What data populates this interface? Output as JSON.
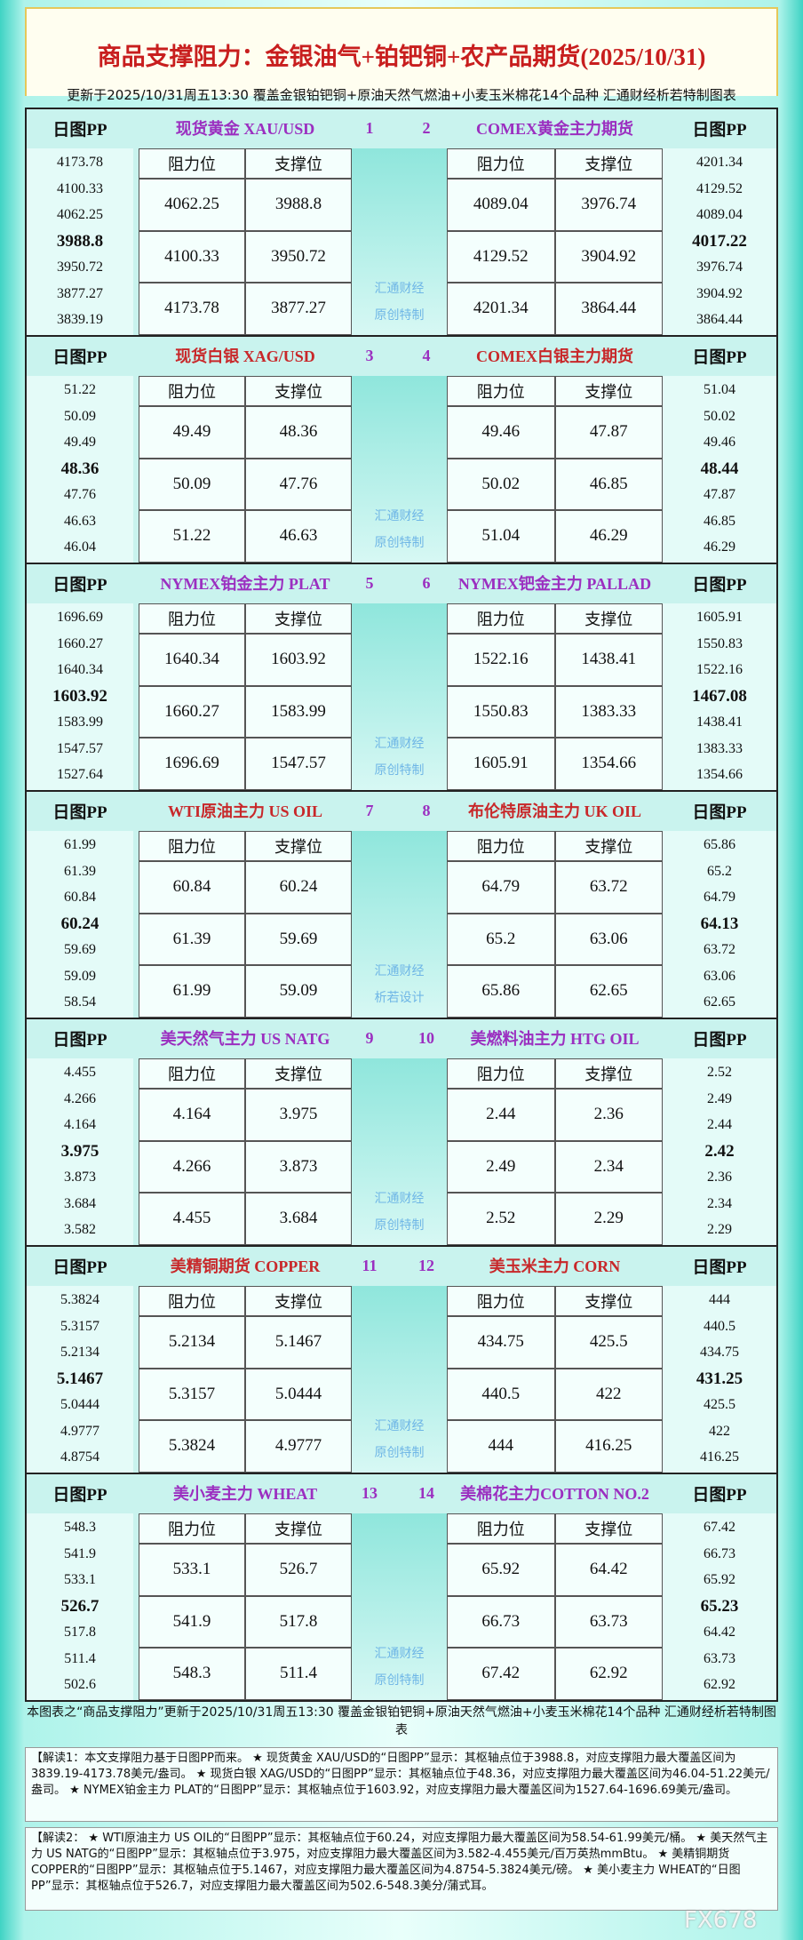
{
  "header": {
    "title": "商品支撑阻力：金银油气+铂钯铜+农产品期货(2025/10/31)",
    "subtitle": "更新于2025/10/31周五13:30 覆盖金银铂钯铜+原油天然气燃油+小麦玉米棉花14个品种 汇通财经析若特制图表"
  },
  "blocks": [
    {
      "numbers": [
        "1",
        "2"
      ],
      "watermark": [
        "汇通财经",
        "原创特制"
      ],
      "left": {
        "pp_label": "日图PP",
        "name": "现货黄金 XAU/USD",
        "pp": [
          "4173.78",
          "4100.33",
          "4062.25",
          "3988.8",
          "3950.72",
          "3877.27",
          "3839.19"
        ],
        "headers": [
          "阻力位",
          "支撑位"
        ],
        "rows": [
          [
            "4062.25",
            "3988.8"
          ],
          [
            "4100.33",
            "3950.72"
          ],
          [
            "4173.78",
            "3877.27"
          ]
        ]
      },
      "right": {
        "pp_label": "日图PP",
        "name": "COMEX黄金主力期货",
        "pp": [
          "4201.34",
          "4129.52",
          "4089.04",
          "4017.22",
          "3976.74",
          "3904.92",
          "3864.44"
        ],
        "headers": [
          "阻力位",
          "支撑位"
        ],
        "rows": [
          [
            "4089.04",
            "3976.74"
          ],
          [
            "4129.52",
            "3904.92"
          ],
          [
            "4201.34",
            "3864.44"
          ]
        ]
      }
    },
    {
      "numbers": [
        "3",
        "4"
      ],
      "watermark": [
        "汇通财经",
        "原创特制"
      ],
      "left": {
        "pp_label": "日图PP",
        "name": "现货白银 XAG/USD",
        "pp": [
          "51.22",
          "50.09",
          "49.49",
          "48.36",
          "47.76",
          "46.63",
          "46.04"
        ],
        "headers": [
          "阻力位",
          "支撑位"
        ],
        "rows": [
          [
            "49.49",
            "48.36"
          ],
          [
            "50.09",
            "47.76"
          ],
          [
            "51.22",
            "46.63"
          ]
        ]
      },
      "right": {
        "pp_label": "日图PP",
        "name": "COMEX白银主力期货",
        "pp": [
          "51.04",
          "50.02",
          "49.46",
          "48.44",
          "47.87",
          "46.85",
          "46.29"
        ],
        "headers": [
          "阻力位",
          "支撑位"
        ],
        "rows": [
          [
            "49.46",
            "47.87"
          ],
          [
            "50.02",
            "46.85"
          ],
          [
            "51.04",
            "46.29"
          ]
        ]
      }
    },
    {
      "numbers": [
        "5",
        "6"
      ],
      "watermark": [
        "汇通财经",
        "原创特制"
      ],
      "left": {
        "pp_label": "日图PP",
        "name": "NYMEX铂金主力 PLAT",
        "pp": [
          "1696.69",
          "1660.27",
          "1640.34",
          "1603.92",
          "1583.99",
          "1547.57",
          "1527.64"
        ],
        "headers": [
          "阻力位",
          "支撑位"
        ],
        "rows": [
          [
            "1640.34",
            "1603.92"
          ],
          [
            "1660.27",
            "1583.99"
          ],
          [
            "1696.69",
            "1547.57"
          ]
        ]
      },
      "right": {
        "pp_label": "日图PP",
        "name": "NYMEX钯金主力 PALLAD",
        "pp": [
          "1605.91",
          "1550.83",
          "1522.16",
          "1467.08",
          "1438.41",
          "1383.33",
          "1354.66"
        ],
        "headers": [
          "阻力位",
          "支撑位"
        ],
        "rows": [
          [
            "1522.16",
            "1438.41"
          ],
          [
            "1550.83",
            "1383.33"
          ],
          [
            "1605.91",
            "1354.66"
          ]
        ]
      }
    },
    {
      "numbers": [
        "7",
        "8"
      ],
      "watermark": [
        "汇通财经",
        "析若设计"
      ],
      "left": {
        "pp_label": "日图PP",
        "name": "WTI原油主力 US OIL",
        "pp": [
          "61.99",
          "61.39",
          "60.84",
          "60.24",
          "59.69",
          "59.09",
          "58.54"
        ],
        "headers": [
          "阻力位",
          "支撑位"
        ],
        "rows": [
          [
            "60.84",
            "60.24"
          ],
          [
            "61.39",
            "59.69"
          ],
          [
            "61.99",
            "59.09"
          ]
        ]
      },
      "right": {
        "pp_label": "日图PP",
        "name": "布伦特原油主力 UK OIL",
        "pp": [
          "65.86",
          "65.2",
          "64.79",
          "64.13",
          "63.72",
          "63.06",
          "62.65"
        ],
        "headers": [
          "阻力位",
          "支撑位"
        ],
        "rows": [
          [
            "64.79",
            "63.72"
          ],
          [
            "65.2",
            "63.06"
          ],
          [
            "65.86",
            "62.65"
          ]
        ]
      }
    },
    {
      "numbers": [
        "9",
        "10"
      ],
      "watermark": [
        "汇通财经",
        "原创特制"
      ],
      "left": {
        "pp_label": "日图PP",
        "name": "美天然气主力 US NATG",
        "pp": [
          "4.455",
          "4.266",
          "4.164",
          "3.975",
          "3.873",
          "3.684",
          "3.582"
        ],
        "headers": [
          "阻力位",
          "支撑位"
        ],
        "rows": [
          [
            "4.164",
            "3.975"
          ],
          [
            "4.266",
            "3.873"
          ],
          [
            "4.455",
            "3.684"
          ]
        ]
      },
      "right": {
        "pp_label": "日图PP",
        "name": "美燃料油主力 HTG OIL",
        "pp": [
          "2.52",
          "2.49",
          "2.44",
          "2.42",
          "2.36",
          "2.34",
          "2.29"
        ],
        "headers": [
          "阻力位",
          "支撑位"
        ],
        "rows": [
          [
            "2.44",
            "2.36"
          ],
          [
            "2.49",
            "2.34"
          ],
          [
            "2.52",
            "2.29"
          ]
        ]
      }
    },
    {
      "numbers": [
        "11",
        "12"
      ],
      "watermark": [
        "汇通财经",
        "原创特制"
      ],
      "left": {
        "pp_label": "日图PP",
        "name": "美精铜期货 COPPER",
        "pp": [
          "5.3824",
          "5.3157",
          "5.2134",
          "5.1467",
          "5.0444",
          "4.9777",
          "4.8754"
        ],
        "headers": [
          "阻力位",
          "支撑位"
        ],
        "rows": [
          [
            "5.2134",
            "5.1467"
          ],
          [
            "5.3157",
            "5.0444"
          ],
          [
            "5.3824",
            "4.9777"
          ]
        ]
      },
      "right": {
        "pp_label": "日图PP",
        "name": "美玉米主力 CORN",
        "pp": [
          "444",
          "440.5",
          "434.75",
          "431.25",
          "425.5",
          "422",
          "416.25"
        ],
        "headers": [
          "阻力位",
          "支撑位"
        ],
        "rows": [
          [
            "434.75",
            "425.5"
          ],
          [
            "440.5",
            "422"
          ],
          [
            "444",
            "416.25"
          ]
        ]
      }
    },
    {
      "numbers": [
        "13",
        "14"
      ],
      "watermark": [
        "汇通财经",
        "原创特制"
      ],
      "left": {
        "pp_label": "日图PP",
        "name": "美小麦主力 WHEAT",
        "pp": [
          "548.3",
          "541.9",
          "533.1",
          "526.7",
          "517.8",
          "511.4",
          "502.6"
        ],
        "headers": [
          "阻力位",
          "支撑位"
        ],
        "rows": [
          [
            "533.1",
            "526.7"
          ],
          [
            "541.9",
            "517.8"
          ],
          [
            "548.3",
            "511.4"
          ]
        ]
      },
      "right": {
        "pp_label": "日图PP",
        "name": "美棉花主力COTTON NO.2",
        "pp": [
          "67.42",
          "66.73",
          "65.92",
          "65.23",
          "64.42",
          "63.73",
          "62.92"
        ],
        "headers": [
          "阻力位",
          "支撑位"
        ],
        "rows": [
          [
            "65.92",
            "64.42"
          ],
          [
            "66.73",
            "63.73"
          ],
          [
            "67.42",
            "62.92"
          ]
        ]
      }
    }
  ],
  "footer": {
    "text": "本图表之“商品支撑阻力”更新于2025/10/31周五13:30 覆盖金银铂钯铜+原油天然气燃油+小麦玉米棉花14个品种 汇通财经析若特制图表",
    "notes": [
      "【解读1：本文支撑阻力基于日图PP而来。 ★ 现货黄金 XAU/USD的“日图PP”显示：其枢轴点位于3988.8，对应支撑阻力最大覆盖区间为3839.19-4173.78美元/盎司。 ★ 现货白银 XAG/USD的“日图PP”显示：其枢轴点位于48.36，对应支撑阻力最大覆盖区间为46.04-51.22美元/盎司。 ★ NYMEX铂金主力 PLAT的“日图PP”显示：其枢轴点位于1603.92，对应支撑阻力最大覆盖区间为1527.64-1696.69美元/盎司。",
      "【解读2： ★ WTI原油主力 US OIL的“日图PP”显示：其枢轴点位于60.24，对应支撑阻力最大覆盖区间为58.54-61.99美元/桶。 ★ 美天然气主力 US NATG的“日图PP”显示：其枢轴点位于3.975，对应支撑阻力最大覆盖区间为3.582-4.455美元/百万英热mmBtu。 ★ 美精铜期货 COPPER的“日图PP”显示：其枢轴点位于5.1467，对应支撑阻力最大覆盖区间为4.8754-5.3824美元/磅。 ★ 美小麦主力 WHEAT的“日图PP”显示：其枢轴点位于526.7，对应支撑阻力最大覆盖区间为502.6-548.3美分/蒲式耳。"
    ]
  },
  "watermark": "FX678"
}
